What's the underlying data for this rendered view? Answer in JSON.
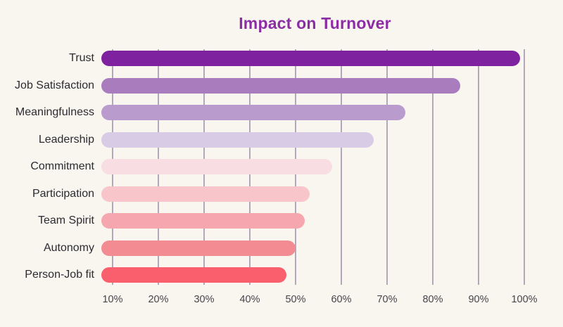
{
  "chart": {
    "title": "Impact on Turnover"
  },
  "chart_data": {
    "type": "bar",
    "orientation": "horizontal",
    "title": "Impact on Turnover",
    "categories": [
      "Trust",
      "Job Satisfaction",
      "Meaningfulness",
      "Leadership",
      "Commitment",
      "Participation",
      "Team Spirit",
      "Autonomy",
      "Person-Job fit"
    ],
    "values": [
      99,
      86,
      74,
      67,
      58,
      53,
      52,
      50,
      48
    ],
    "unit": "%",
    "xlabel": "",
    "ylabel": "",
    "xlim": [
      0,
      100
    ],
    "x_ticks": [
      "10%",
      "20%",
      "30%",
      "40%",
      "50%",
      "60%",
      "70%",
      "80%",
      "90%",
      "100%"
    ],
    "grid": "vertical-only",
    "legend": "none",
    "bar_colors": [
      "#7e22a0",
      "#a87cbd",
      "#b99bce",
      "#d7cbe6",
      "#f8dde2",
      "#f8c5cb",
      "#f5a6ae",
      "#f28b92",
      "#fa5f6e"
    ],
    "colors": {
      "background": "#f9f6ef",
      "gridline": "#b3a7ba",
      "title": "#8c2da5",
      "category_label": "#2b2b32",
      "tick_label": "#45454c"
    }
  }
}
